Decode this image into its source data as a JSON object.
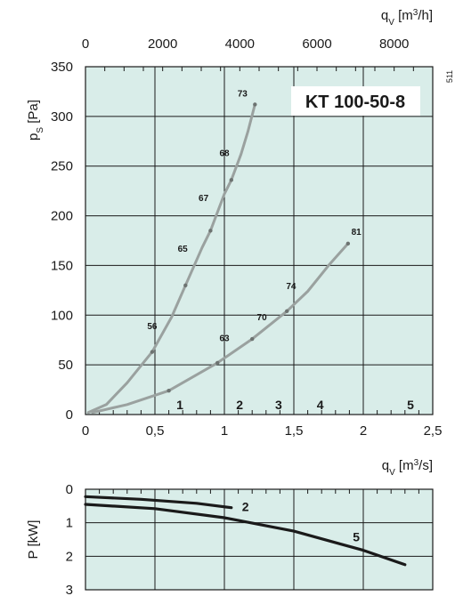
{
  "chart_data": [
    {
      "type": "line",
      "title": "KT  100-50-8",
      "side_number": "511",
      "xlabel_sym": "q",
      "xlabel_sub": "V",
      "xlabel_unit": "[m",
      "xlabel_sup": "3",
      "xlabel_end": "/s]",
      "ylabel_sym": "p",
      "ylabel_sub": "S",
      "ylabel_unit": "[Pa]",
      "top_label_sym": "q",
      "top_label_sub": "V",
      "top_label_unit": "[m",
      "top_label_sup": "3",
      "top_label_end": "/h]",
      "xlim": [
        0,
        2.5
      ],
      "ylim": [
        0,
        350
      ],
      "top_xlim": [
        0,
        9000
      ],
      "x_ticks": [
        "0",
        "0,5",
        "1",
        "1,5",
        "2",
        "2,5"
      ],
      "x_tick_values": [
        0,
        0.5,
        1,
        1.5,
        2,
        2.5
      ],
      "y_ticks": [
        "0",
        "50",
        "100",
        "150",
        "200",
        "250",
        "300",
        "350"
      ],
      "y_tick_values": [
        0,
        50,
        100,
        150,
        200,
        250,
        300,
        350
      ],
      "top_ticks": [
        "0",
        "2000",
        "4000",
        "6000",
        "8000"
      ],
      "top_tick_values": [
        0,
        2000,
        4000,
        6000,
        8000
      ],
      "grid": true,
      "background": "#d9ede9",
      "curve_color": "#9aa19f",
      "series": [
        {
          "values": [
            [
              0.02,
              2
            ],
            [
              0.15,
              10
            ],
            [
              0.3,
              32
            ],
            [
              0.48,
              63
            ],
            [
              0.62,
              98
            ],
            [
              0.72,
              130
            ],
            [
              0.84,
              168
            ],
            [
              0.9,
              185
            ],
            [
              1.0,
              222
            ],
            [
              1.05,
              236
            ],
            [
              1.12,
              262
            ],
            [
              1.17,
              285
            ],
            [
              1.22,
              312
            ]
          ],
          "markers": [
            [
              0.48,
              63
            ],
            [
              0.72,
              130
            ],
            [
              0.9,
              185
            ],
            [
              1.05,
              236
            ],
            [
              1.22,
              312
            ]
          ]
        },
        {
          "values": [
            [
              0.05,
              2
            ],
            [
              0.3,
              10
            ],
            [
              0.6,
              24
            ],
            [
              0.95,
              52
            ],
            [
              1.2,
              76
            ],
            [
              1.45,
              104
            ],
            [
              1.6,
              124
            ],
            [
              1.75,
              150
            ],
            [
              1.89,
              172
            ]
          ],
          "markers": [
            [
              0.6,
              24
            ],
            [
              0.95,
              52
            ],
            [
              1.2,
              76
            ],
            [
              1.45,
              104
            ],
            [
              1.89,
              172
            ]
          ]
        }
      ],
      "point_labels": [
        {
          "text": "73",
          "x": 1.13,
          "y": 320
        },
        {
          "text": "68",
          "x": 1.0,
          "y": 260
        },
        {
          "text": "67",
          "x": 0.85,
          "y": 215
        },
        {
          "text": "65",
          "x": 0.7,
          "y": 164
        },
        {
          "text": "56",
          "x": 0.48,
          "y": 86
        },
        {
          "text": "63",
          "x": 1.0,
          "y": 74
        },
        {
          "text": "70",
          "x": 1.27,
          "y": 95
        },
        {
          "text": "74",
          "x": 1.48,
          "y": 126
        },
        {
          "text": "81",
          "x": 1.95,
          "y": 181
        }
      ],
      "zone_labels": [
        {
          "text": "1",
          "x": 0.68
        },
        {
          "text": "2",
          "x": 1.11
        },
        {
          "text": "3",
          "x": 1.39
        },
        {
          "text": "4",
          "x": 1.69
        },
        {
          "text": "5",
          "x": 2.34
        }
      ]
    },
    {
      "type": "line",
      "ylabel": "P  [kW]",
      "xlim": [
        0,
        2.5
      ],
      "ylim": [
        0,
        3
      ],
      "y_inverted": true,
      "y_ticks": [
        "0",
        "1",
        "2",
        "3"
      ],
      "y_tick_values": [
        0,
        1,
        2,
        3
      ],
      "grid": true,
      "background": "#d9ede9",
      "curve_color": "#1a1a1a",
      "series": [
        {
          "name": "2",
          "values": [
            [
              0,
              0.22
            ],
            [
              0.4,
              0.3
            ],
            [
              0.8,
              0.42
            ],
            [
              1.05,
              0.55
            ]
          ]
        },
        {
          "name": "5",
          "values": [
            [
              0,
              0.45
            ],
            [
              0.5,
              0.58
            ],
            [
              1.0,
              0.85
            ],
            [
              1.5,
              1.25
            ],
            [
              2.0,
              1.82
            ],
            [
              2.3,
              2.25
            ]
          ]
        }
      ]
    }
  ]
}
